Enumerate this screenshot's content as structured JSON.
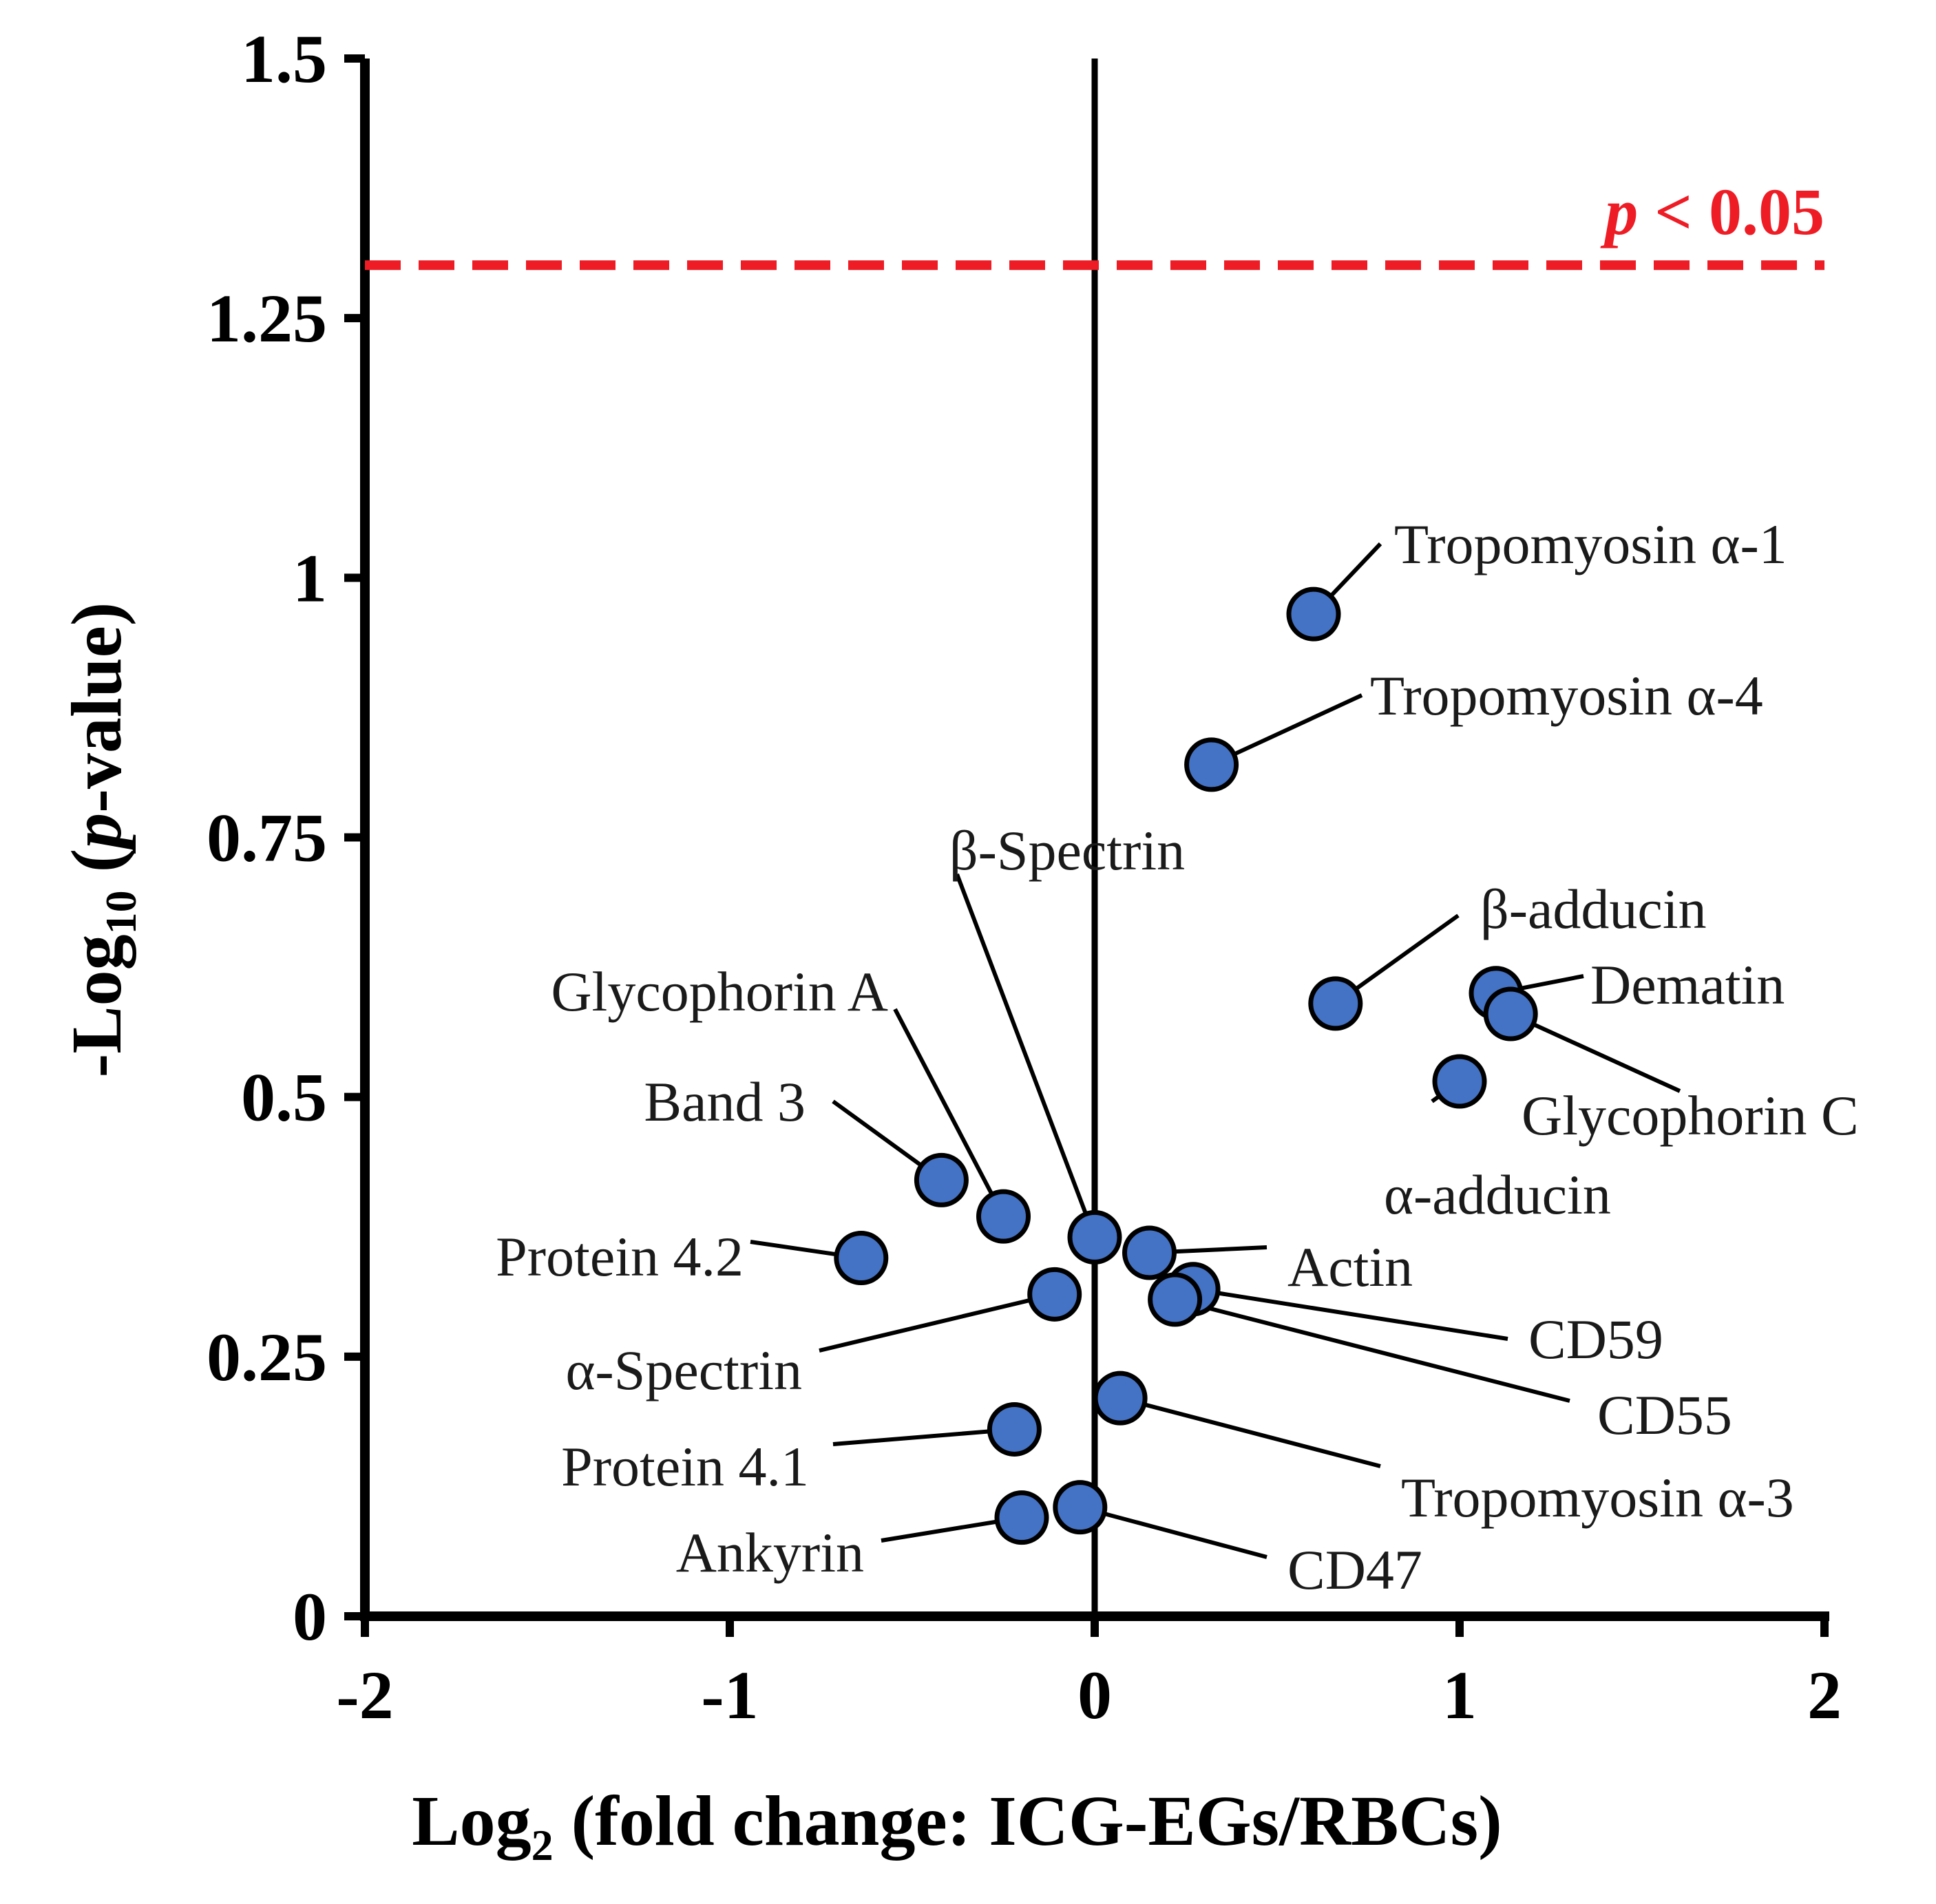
{
  "chart_data": {
    "type": "scatter",
    "title": "",
    "xlabel": {
      "prefix": "Log",
      "subscript": "2",
      "rest": " (fold change: ICG-EGs/RBCs)"
    },
    "ylabel": {
      "prefix": "-Log",
      "subscript": "10",
      "open": " (",
      "italic": "p",
      "rest": "-value)"
    },
    "xlim": [
      -2,
      2
    ],
    "ylim": [
      0,
      1.5
    ],
    "xticks": [
      {
        "value": -2,
        "label": "-2"
      },
      {
        "value": -1,
        "label": "-1"
      },
      {
        "value": 0,
        "label": "0"
      },
      {
        "value": 1,
        "label": "1"
      },
      {
        "value": 2,
        "label": "2"
      }
    ],
    "yticks": [
      {
        "value": 0,
        "label": "0"
      },
      {
        "value": 0.25,
        "label": "0.25"
      },
      {
        "value": 0.5,
        "label": "0.5"
      },
      {
        "value": 0.75,
        "label": "0.75"
      },
      {
        "value": 1,
        "label": "1"
      },
      {
        "value": 1.25,
        "label": "1.25"
      },
      {
        "value": 1.5,
        "label": "1.5"
      }
    ],
    "threshold": {
      "value": 1.301,
      "label_italic": "p",
      "label_rest": " < 0.05",
      "color": "#ee1c25"
    },
    "point_color": "#4472c4",
    "points": [
      {
        "name": "Tropomyosin α-1",
        "x": 0.6,
        "y": 0.965
      },
      {
        "name": "Tropomyosin α-4",
        "x": 0.32,
        "y": 0.82
      },
      {
        "name": "β-adducin",
        "x": 0.66,
        "y": 0.59
      },
      {
        "name": "Dematin",
        "x": 1.1,
        "y": 0.6
      },
      {
        "name": "Glycophorin C",
        "x": 1.14,
        "y": 0.58
      },
      {
        "name": "α-adducin",
        "x": 1.0,
        "y": 0.515
      },
      {
        "name": "Band 3",
        "x": -0.42,
        "y": 0.42
      },
      {
        "name": "Glycophorin A",
        "x": -0.25,
        "y": 0.385
      },
      {
        "name": "β-Spectrin",
        "x": 0.0,
        "y": 0.365
      },
      {
        "name": "Actin",
        "x": 0.15,
        "y": 0.35
      },
      {
        "name": "Protein 4.2",
        "x": -0.64,
        "y": 0.345
      },
      {
        "name": "CD59",
        "x": 0.27,
        "y": 0.315
      },
      {
        "name": "α-Spectrin",
        "x": -0.11,
        "y": 0.31
      },
      {
        "name": "CD55",
        "x": 0.22,
        "y": 0.305
      },
      {
        "name": "Tropomyosin α-3",
        "x": 0.07,
        "y": 0.21
      },
      {
        "name": "Protein 4.1",
        "x": -0.22,
        "y": 0.18
      },
      {
        "name": "CD47",
        "x": -0.04,
        "y": 0.105
      },
      {
        "name": "Ankyrin",
        "x": -0.2,
        "y": 0.095
      }
    ]
  }
}
